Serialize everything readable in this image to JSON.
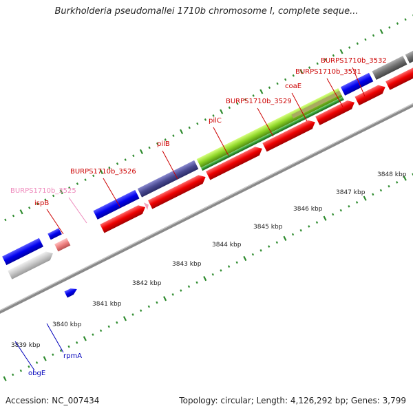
{
  "title": "Burkholderia pseudomallei 1710b chromosome I, complete seque...",
  "footer": {
    "accession": "Accession: NC_007434",
    "summary": "Topology: circular; Length: 4,126,292 bp; Genes: 3,799"
  },
  "scale_labels": [
    "3839 kbp",
    "3840 kbp",
    "3841 kbp",
    "3842 kbp",
    "3843 kbp",
    "3844 kbp",
    "3845 kbp",
    "3846 kbp",
    "3847 kbp",
    "3848 kbp"
  ],
  "colors": {
    "forward_gene": "#0000ee",
    "cds": "#ee0000",
    "label_red": "#cc0000",
    "label_blue": "#0000bb",
    "label_pink": "#ee88bb",
    "tick": "#2a8a2a",
    "backbone": "#888888"
  },
  "features": [
    {
      "name": "obgE",
      "color": "blue"
    },
    {
      "name": "rpmA",
      "color": "blue"
    },
    {
      "name": "ispB",
      "color": "red"
    },
    {
      "name": "BURPS1710b_3525",
      "color": "pink"
    },
    {
      "name": "BURPS1710b_3526",
      "color": "red"
    },
    {
      "name": "pilB",
      "color": "red"
    },
    {
      "name": "pilC",
      "color": "red"
    },
    {
      "name": "BURPS1710b_3529",
      "color": "red"
    },
    {
      "name": "coaE",
      "color": "red"
    },
    {
      "name": "BURPS1710b_3531",
      "color": "red"
    },
    {
      "name": "BURPS1710b_3532",
      "color": "red"
    }
  ]
}
